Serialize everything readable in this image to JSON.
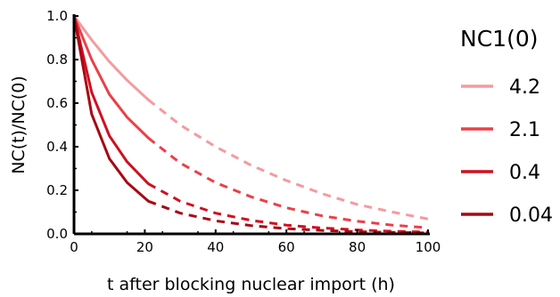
{
  "chart_data": {
    "type": "line",
    "xlabel": "t after blocking nuclear import (h)",
    "ylabel": "NC(t)/NC(0)",
    "xlim": [
      0,
      100
    ],
    "ylim": [
      0,
      1.0
    ],
    "x_ticks": [
      0,
      20,
      40,
      60,
      80,
      100
    ],
    "x_tick_labels": [
      "0",
      "20",
      "40",
      "60",
      "80",
      "100"
    ],
    "y_ticks": [
      0.0,
      0.2,
      0.4,
      0.6,
      0.8,
      1.0
    ],
    "y_tick_labels": [
      "0.0",
      "0.2",
      "0.4",
      "0.6",
      "0.8",
      "1.0"
    ],
    "grid": false,
    "legend_title": "NC1(0)",
    "legend_position": "right",
    "solid_until_x": 21,
    "solid_segment_style": "solid",
    "extrapolated_segment_style": "dashed",
    "x": [
      0,
      5,
      10,
      15,
      21,
      30,
      40,
      50,
      60,
      70,
      80,
      90,
      100
    ],
    "series": [
      {
        "name": "4.2",
        "color": "#f59a9f",
        "values": [
          1.0,
          0.89,
          0.79,
          0.705,
          0.615,
          0.5,
          0.4,
          0.315,
          0.245,
          0.185,
          0.135,
          0.1,
          0.068
        ]
      },
      {
        "name": "2.1",
        "color": "#ea4048",
        "values": [
          1.0,
          0.8,
          0.64,
          0.535,
          0.44,
          0.325,
          0.235,
          0.17,
          0.12,
          0.083,
          0.058,
          0.04,
          0.028
        ]
      },
      {
        "name": "0.4",
        "color": "#d01020",
        "values": [
          1.0,
          0.65,
          0.45,
          0.33,
          0.23,
          0.15,
          0.095,
          0.062,
          0.04,
          0.027,
          0.018,
          0.012,
          0.008
        ]
      },
      {
        "name": "0.04",
        "color": "#a80812",
        "values": [
          1.0,
          0.55,
          0.345,
          0.235,
          0.15,
          0.095,
          0.06,
          0.038,
          0.024,
          0.016,
          0.01,
          0.007,
          0.004
        ]
      }
    ]
  }
}
